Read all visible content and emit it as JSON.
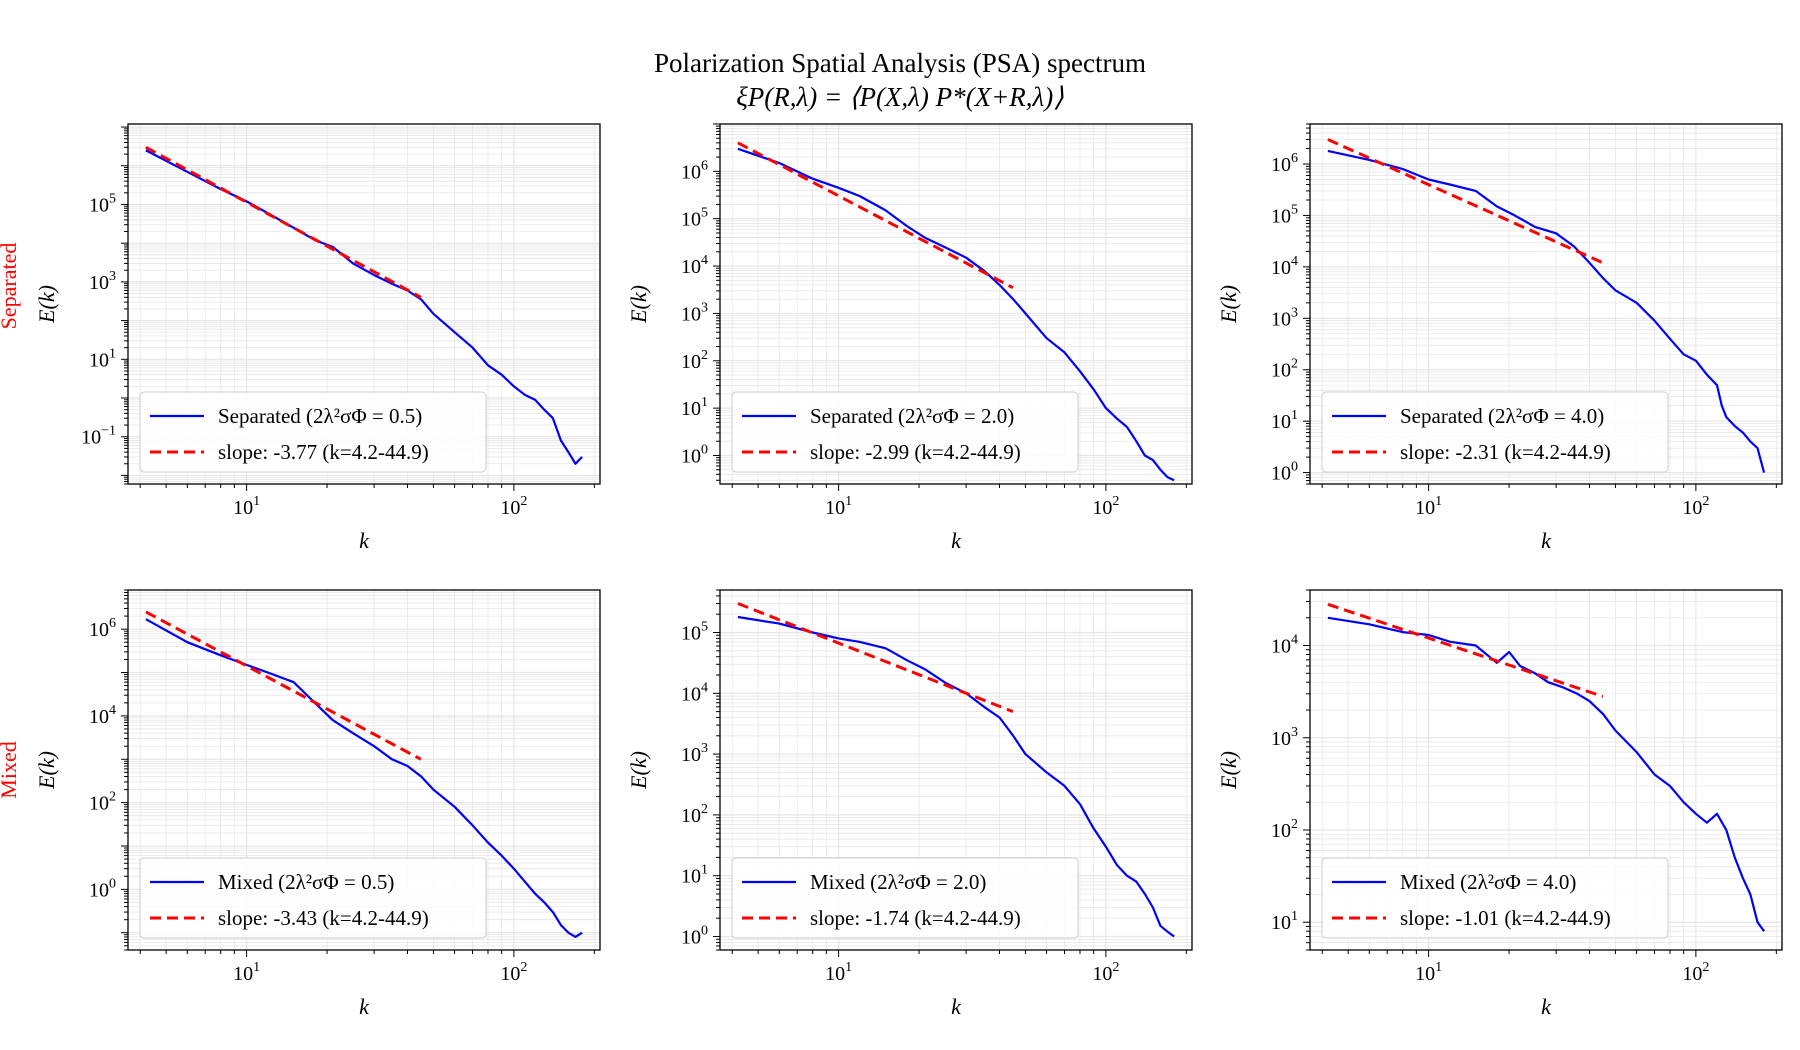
{
  "figure": {
    "suptitle": "Polarization Spatial Analysis (PSA) spectrum",
    "suptitle_formula": "ξP(R,λ) = ⟨P(X,λ) P*(X+R,λ)⟩",
    "row_labels": [
      "Separated",
      "Mixed"
    ],
    "row_label_color": "#ff0000",
    "colors": {
      "data_line": "#0000ff",
      "fit_line": "#ff0000",
      "grid": "#e6e6e6",
      "axis": "#000000"
    }
  },
  "chart_data": [
    {
      "type": "line",
      "row": 0,
      "col": 0,
      "xlabel": "k",
      "ylabel": "E(k)",
      "xscale": "log",
      "yscale": "log",
      "xlim": [
        3.6,
        210
      ],
      "ylim": [
        0.006,
        12000000
      ],
      "xticks": [
        {
          "v": 10,
          "label": "10",
          "exp": "1"
        },
        {
          "v": 100,
          "label": "10",
          "exp": "2"
        }
      ],
      "yticks": [
        {
          "v": 0.1,
          "label": "10",
          "exp": "−1"
        },
        {
          "v": 10,
          "label": "10",
          "exp": "1"
        },
        {
          "v": 1000,
          "label": "10",
          "exp": "3"
        },
        {
          "v": 100000,
          "label": "10",
          "exp": "5"
        }
      ],
      "grid": true,
      "legend_position": "lower-left",
      "series": [
        {
          "name": "Separated (2λ²σΦ = 0.5)",
          "style": "solid",
          "x": [
            4.2,
            6,
            8,
            10,
            12,
            15,
            18,
            21,
            25,
            30,
            35,
            40,
            45,
            50,
            60,
            70,
            80,
            90,
            100,
            110,
            120,
            130,
            140,
            150,
            160,
            170,
            180
          ],
          "y": [
            2500000,
            700000,
            250000,
            120000,
            60000,
            25000,
            12000,
            8000,
            3000,
            1500,
            900,
            600,
            350,
            150,
            50,
            20,
            7,
            4,
            2,
            1.2,
            0.9,
            0.5,
            0.3,
            0.08,
            0.04,
            0.02,
            0.03
          ]
        },
        {
          "name": "slope: -3.77 (k=4.2-44.9)",
          "style": "dashed",
          "x": [
            4.2,
            44.9
          ],
          "y": [
            3000000,
            400
          ]
        }
      ]
    },
    {
      "type": "line",
      "row": 0,
      "col": 1,
      "xlabel": "k",
      "ylabel": "E(k)",
      "xscale": "log",
      "yscale": "log",
      "xlim": [
        3.6,
        210
      ],
      "ylim": [
        0.25,
        10000000
      ],
      "xticks": [
        {
          "v": 10,
          "label": "10",
          "exp": "1"
        },
        {
          "v": 100,
          "label": "10",
          "exp": "2"
        }
      ],
      "yticks": [
        {
          "v": 1,
          "label": "10",
          "exp": "0"
        },
        {
          "v": 10,
          "label": "10",
          "exp": "1"
        },
        {
          "v": 100,
          "label": "10",
          "exp": "2"
        },
        {
          "v": 1000,
          "label": "10",
          "exp": "3"
        },
        {
          "v": 10000,
          "label": "10",
          "exp": "4"
        },
        {
          "v": 100000,
          "label": "10",
          "exp": "5"
        },
        {
          "v": 1000000,
          "label": "10",
          "exp": "6"
        }
      ],
      "grid": true,
      "legend_position": "lower-left",
      "series": [
        {
          "name": "Separated (2λ²σΦ = 2.0)",
          "style": "solid",
          "x": [
            4.2,
            6,
            8,
            10,
            12,
            15,
            18,
            21,
            25,
            30,
            35,
            40,
            45,
            50,
            60,
            70,
            80,
            90,
            100,
            110,
            120,
            130,
            140,
            150,
            160,
            170,
            180
          ],
          "y": [
            3000000,
            1500000,
            700000,
            450000,
            300000,
            150000,
            70000,
            40000,
            25000,
            15000,
            8000,
            4000,
            2000,
            1000,
            300,
            150,
            60,
            25,
            10,
            6,
            4,
            2,
            1,
            0.8,
            0.5,
            0.35,
            0.3
          ]
        },
        {
          "name": "slope: -2.99 (k=4.2-44.9)",
          "style": "dashed",
          "x": [
            4.2,
            44.9
          ],
          "y": [
            4000000,
            3500
          ]
        }
      ]
    },
    {
      "type": "line",
      "row": 0,
      "col": 2,
      "xlabel": "k",
      "ylabel": "E(k)",
      "xscale": "log",
      "yscale": "log",
      "xlim": [
        3.6,
        210
      ],
      "ylim": [
        0.6,
        6000000
      ],
      "xticks": [
        {
          "v": 10,
          "label": "10",
          "exp": "1"
        },
        {
          "v": 100,
          "label": "10",
          "exp": "2"
        }
      ],
      "yticks": [
        {
          "v": 1,
          "label": "10",
          "exp": "0"
        },
        {
          "v": 10,
          "label": "10",
          "exp": "1"
        },
        {
          "v": 100,
          "label": "10",
          "exp": "2"
        },
        {
          "v": 1000,
          "label": "10",
          "exp": "3"
        },
        {
          "v": 10000,
          "label": "10",
          "exp": "4"
        },
        {
          "v": 100000,
          "label": "10",
          "exp": "5"
        },
        {
          "v": 1000000,
          "label": "10",
          "exp": "6"
        }
      ],
      "grid": true,
      "legend_position": "lower-left",
      "series": [
        {
          "name": "Separated (2λ²σΦ = 4.0)",
          "style": "solid",
          "x": [
            4.2,
            6,
            8,
            10,
            12,
            15,
            18,
            21,
            25,
            30,
            35,
            40,
            45,
            50,
            60,
            70,
            80,
            90,
            100,
            110,
            120,
            125,
            130,
            140,
            150,
            160,
            170,
            180
          ],
          "y": [
            1800000,
            1200000,
            800000,
            500000,
            400000,
            300000,
            150000,
            100000,
            60000,
            45000,
            25000,
            12000,
            6000,
            3500,
            2000,
            900,
            400,
            200,
            150,
            80,
            50,
            20,
            12,
            8,
            6,
            4,
            3,
            1
          ]
        },
        {
          "name": "slope: -2.31 (k=4.2-44.9)",
          "style": "dashed",
          "x": [
            4.2,
            44.9
          ],
          "y": [
            3000000,
            12000
          ]
        }
      ]
    },
    {
      "type": "line",
      "row": 1,
      "col": 0,
      "xlabel": "k",
      "ylabel": "E(k)",
      "xscale": "log",
      "yscale": "log",
      "xlim": [
        3.6,
        210
      ],
      "ylim": [
        0.04,
        8000000
      ],
      "xticks": [
        {
          "v": 10,
          "label": "10",
          "exp": "1"
        },
        {
          "v": 100,
          "label": "10",
          "exp": "2"
        }
      ],
      "yticks": [
        {
          "v": 1,
          "label": "10",
          "exp": "0"
        },
        {
          "v": 100,
          "label": "10",
          "exp": "2"
        },
        {
          "v": 10000,
          "label": "10",
          "exp": "4"
        },
        {
          "v": 1000000,
          "label": "10",
          "exp": "6"
        }
      ],
      "grid": true,
      "legend_position": "lower-left",
      "series": [
        {
          "name": "Mixed (2λ²σΦ = 0.5)",
          "style": "solid",
          "x": [
            4.2,
            6,
            8,
            10,
            12,
            15,
            18,
            21,
            25,
            30,
            35,
            40,
            45,
            50,
            60,
            70,
            80,
            90,
            100,
            110,
            120,
            130,
            140,
            150,
            160,
            170,
            180
          ],
          "y": [
            1700000,
            500000,
            250000,
            150000,
            100000,
            60000,
            20000,
            8000,
            4000,
            2000,
            1000,
            700,
            400,
            200,
            80,
            30,
            12,
            6,
            3,
            1.5,
            0.8,
            0.5,
            0.3,
            0.15,
            0.1,
            0.08,
            0.1
          ]
        },
        {
          "name": "slope: -3.43 (k=4.2-44.9)",
          "style": "dashed",
          "x": [
            4.2,
            44.9
          ],
          "y": [
            2500000,
            1000
          ]
        }
      ]
    },
    {
      "type": "line",
      "row": 1,
      "col": 1,
      "xlabel": "k",
      "ylabel": "E(k)",
      "xscale": "log",
      "yscale": "log",
      "xlim": [
        3.6,
        210
      ],
      "ylim": [
        0.6,
        500000
      ],
      "xticks": [
        {
          "v": 10,
          "label": "10",
          "exp": "1"
        },
        {
          "v": 100,
          "label": "10",
          "exp": "2"
        }
      ],
      "yticks": [
        {
          "v": 1,
          "label": "10",
          "exp": "0"
        },
        {
          "v": 10,
          "label": "10",
          "exp": "1"
        },
        {
          "v": 100,
          "label": "10",
          "exp": "2"
        },
        {
          "v": 1000,
          "label": "10",
          "exp": "3"
        },
        {
          "v": 10000,
          "label": "10",
          "exp": "4"
        },
        {
          "v": 100000,
          "label": "10",
          "exp": "5"
        }
      ],
      "grid": true,
      "legend_position": "lower-left",
      "series": [
        {
          "name": "Mixed (2λ²σΦ = 2.0)",
          "style": "solid",
          "x": [
            4.2,
            6,
            8,
            10,
            12,
            15,
            18,
            21,
            25,
            30,
            35,
            40,
            45,
            50,
            60,
            70,
            80,
            90,
            100,
            110,
            120,
            130,
            140,
            150,
            160,
            170,
            180
          ],
          "y": [
            180000,
            140000,
            100000,
            80000,
            70000,
            55000,
            35000,
            25000,
            15000,
            10000,
            6000,
            4000,
            2000,
            1000,
            500,
            300,
            150,
            60,
            30,
            15,
            10,
            8,
            5,
            3,
            1.5,
            1.2,
            1
          ]
        },
        {
          "name": "slope: -1.74 (k=4.2-44.9)",
          "style": "dashed",
          "x": [
            4.2,
            44.9
          ],
          "y": [
            300000,
            5000
          ]
        }
      ]
    },
    {
      "type": "line",
      "row": 1,
      "col": 2,
      "xlabel": "k",
      "ylabel": "E(k)",
      "xscale": "log",
      "yscale": "log",
      "xlim": [
        3.6,
        210
      ],
      "ylim": [
        5,
        40000
      ],
      "xticks": [
        {
          "v": 10,
          "label": "10",
          "exp": "1"
        },
        {
          "v": 100,
          "label": "10",
          "exp": "2"
        }
      ],
      "yticks": [
        {
          "v": 10,
          "label": "10",
          "exp": "1"
        },
        {
          "v": 100,
          "label": "10",
          "exp": "2"
        },
        {
          "v": 1000,
          "label": "10",
          "exp": "3"
        },
        {
          "v": 10000,
          "label": "10",
          "exp": "4"
        }
      ],
      "grid": true,
      "legend_position": "lower-left",
      "series": [
        {
          "name": "Mixed (2λ²σΦ = 4.0)",
          "style": "solid",
          "x": [
            4.2,
            6,
            8,
            10,
            12,
            15,
            18,
            20,
            22,
            25,
            28,
            32,
            36,
            40,
            45,
            50,
            60,
            70,
            80,
            90,
            100,
            110,
            120,
            130,
            140,
            150,
            160,
            170,
            180
          ],
          "y": [
            20000,
            17000,
            14000,
            13000,
            11000,
            10000,
            6500,
            8500,
            6000,
            5000,
            4000,
            3500,
            3000,
            2500,
            1800,
            1200,
            700,
            400,
            300,
            200,
            150,
            120,
            150,
            100,
            50,
            30,
            20,
            10,
            8
          ]
        },
        {
          "name": "slope: -1.01 (k=4.2-44.9)",
          "style": "dashed",
          "x": [
            4.2,
            44.9
          ],
          "y": [
            28000,
            2800
          ]
        }
      ]
    }
  ]
}
